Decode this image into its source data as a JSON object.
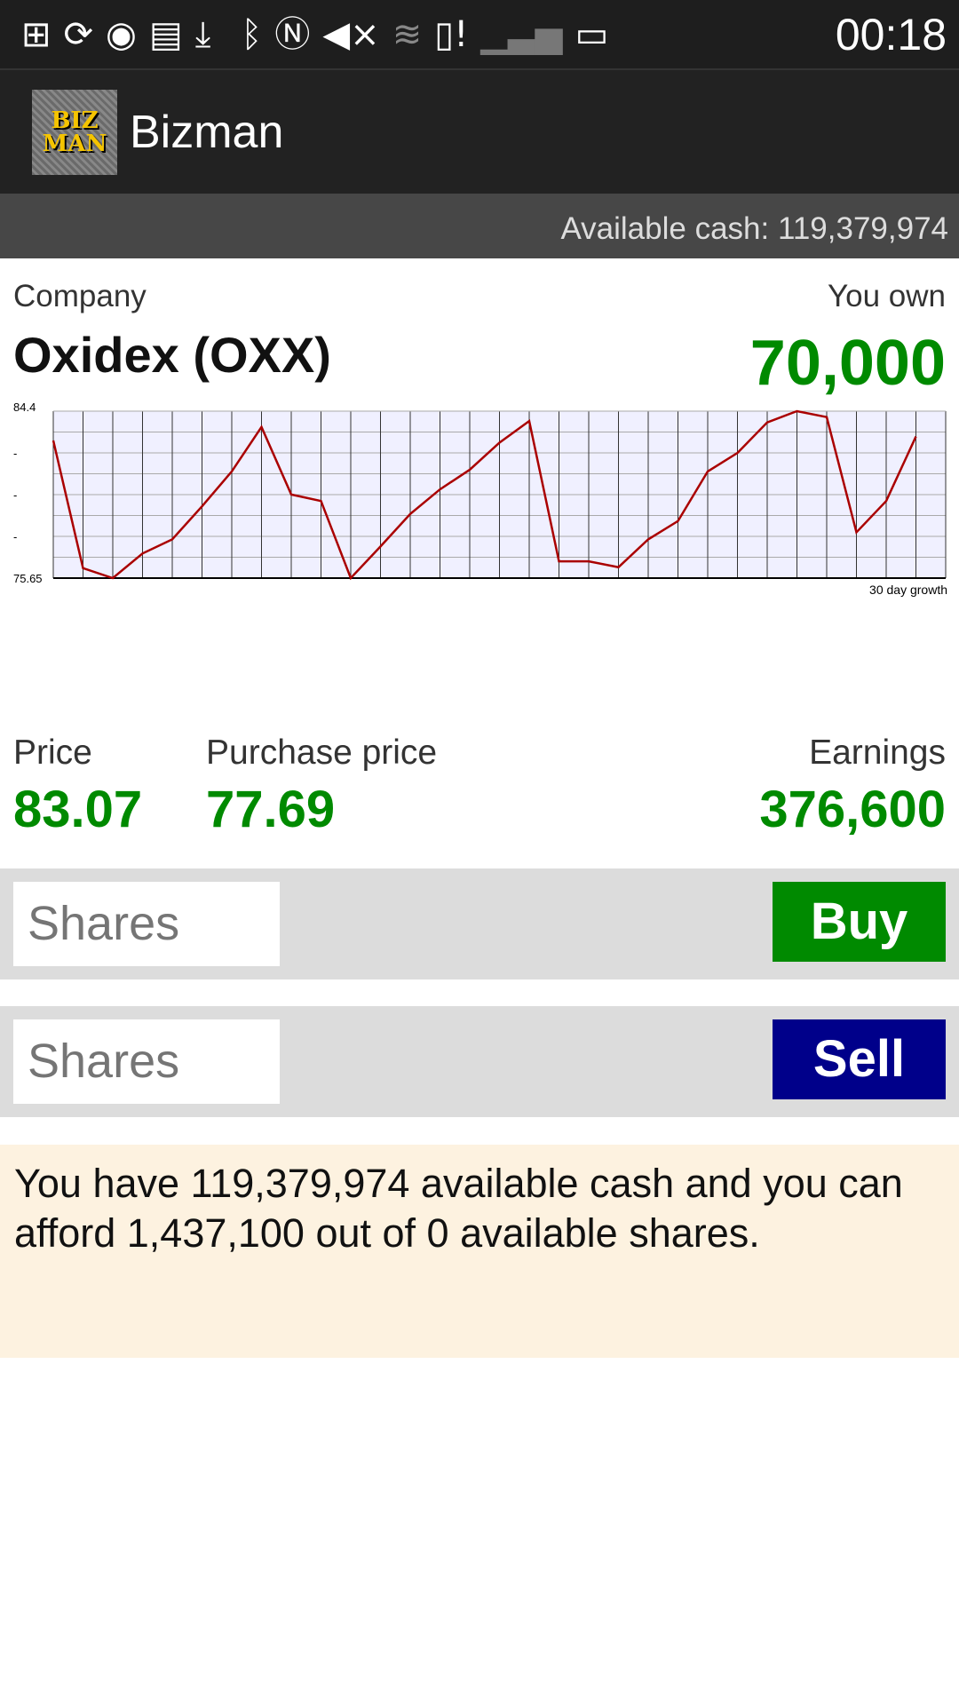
{
  "status_bar": {
    "time": "00:18",
    "icons": [
      "add-tab-icon",
      "sync-icon",
      "refresh-icon",
      "image-icon",
      "download-icon",
      "bluetooth-icon",
      "nfc-icon",
      "mute-icon",
      "wifi-icon",
      "sd-card-alert-icon",
      "no-signal-icon",
      "battery-icon"
    ]
  },
  "app": {
    "title": "Bizman",
    "logo_text": [
      "BIZ",
      "MAN"
    ]
  },
  "cash_bar": {
    "text": "Available cash: 119,379,974"
  },
  "company": {
    "label": "Company",
    "name": "Oxidex (OXX)",
    "own_label": "You own",
    "own_value": "70,000"
  },
  "chart_data": {
    "type": "line",
    "xlabel": "30 day growth",
    "ylim": [
      75.65,
      84.4
    ],
    "y_tick_labels": [
      "84.4",
      "-",
      "-",
      "-",
      "75.65"
    ],
    "grid": true,
    "colors": {
      "line": "#aa0000",
      "plot_bg": "#f0f0ff"
    },
    "values": [
      82.86,
      76.17,
      75.65,
      76.94,
      77.68,
      79.41,
      81.24,
      83.57,
      80.03,
      79.69,
      75.65,
      77.31,
      79.01,
      80.3,
      81.33,
      82.75,
      83.88,
      76.53,
      76.53,
      76.22,
      77.68,
      78.64,
      81.24,
      82.21,
      83.81,
      84.4,
      84.09,
      78.05,
      79.69,
      83.07
    ]
  },
  "stats": {
    "price_label": "Price",
    "price": "83.07",
    "purchase_label": "Purchase price",
    "purchase": "77.69",
    "earnings_label": "Earnings",
    "earnings": "376,600"
  },
  "buy": {
    "placeholder": "Shares",
    "label": "Buy",
    "color": "#008a00"
  },
  "sell": {
    "placeholder": "Shares",
    "label": "Sell",
    "color": "#00008a"
  },
  "info": {
    "text": "You have 119,379,974 available cash and you can afford 1,437,100 out of 0 available shares."
  }
}
